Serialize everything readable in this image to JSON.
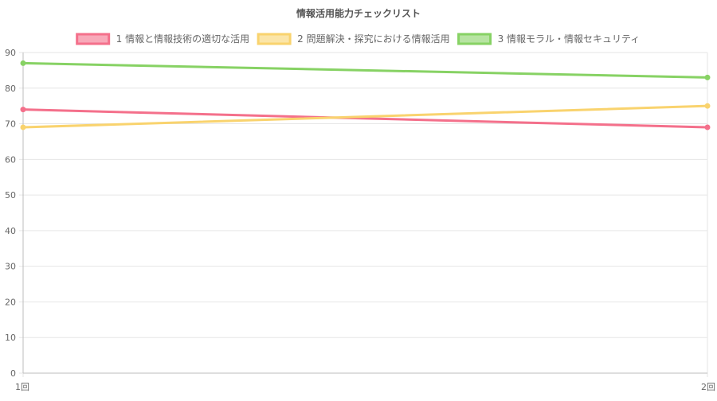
{
  "chart_data": {
    "type": "line",
    "title": "情報活用能力チェックリスト",
    "categories": [
      "1回",
      "2回"
    ],
    "ylim": [
      0,
      90
    ],
    "yticks": [
      0,
      10,
      20,
      30,
      40,
      50,
      60,
      70,
      80,
      90
    ],
    "grid": true,
    "legend_position": "top",
    "series": [
      {
        "name": "1 情報と情報技術の適切な活用",
        "values": [
          74,
          69
        ],
        "color": "#f4708b"
      },
      {
        "name": "2 問題解決・探究における情報活用",
        "values": [
          69,
          75
        ],
        "color": "#f9d36e"
      },
      {
        "name": "3 情報モラル・情報セキュリティ",
        "values": [
          87,
          83
        ],
        "color": "#87d264"
      }
    ]
  }
}
